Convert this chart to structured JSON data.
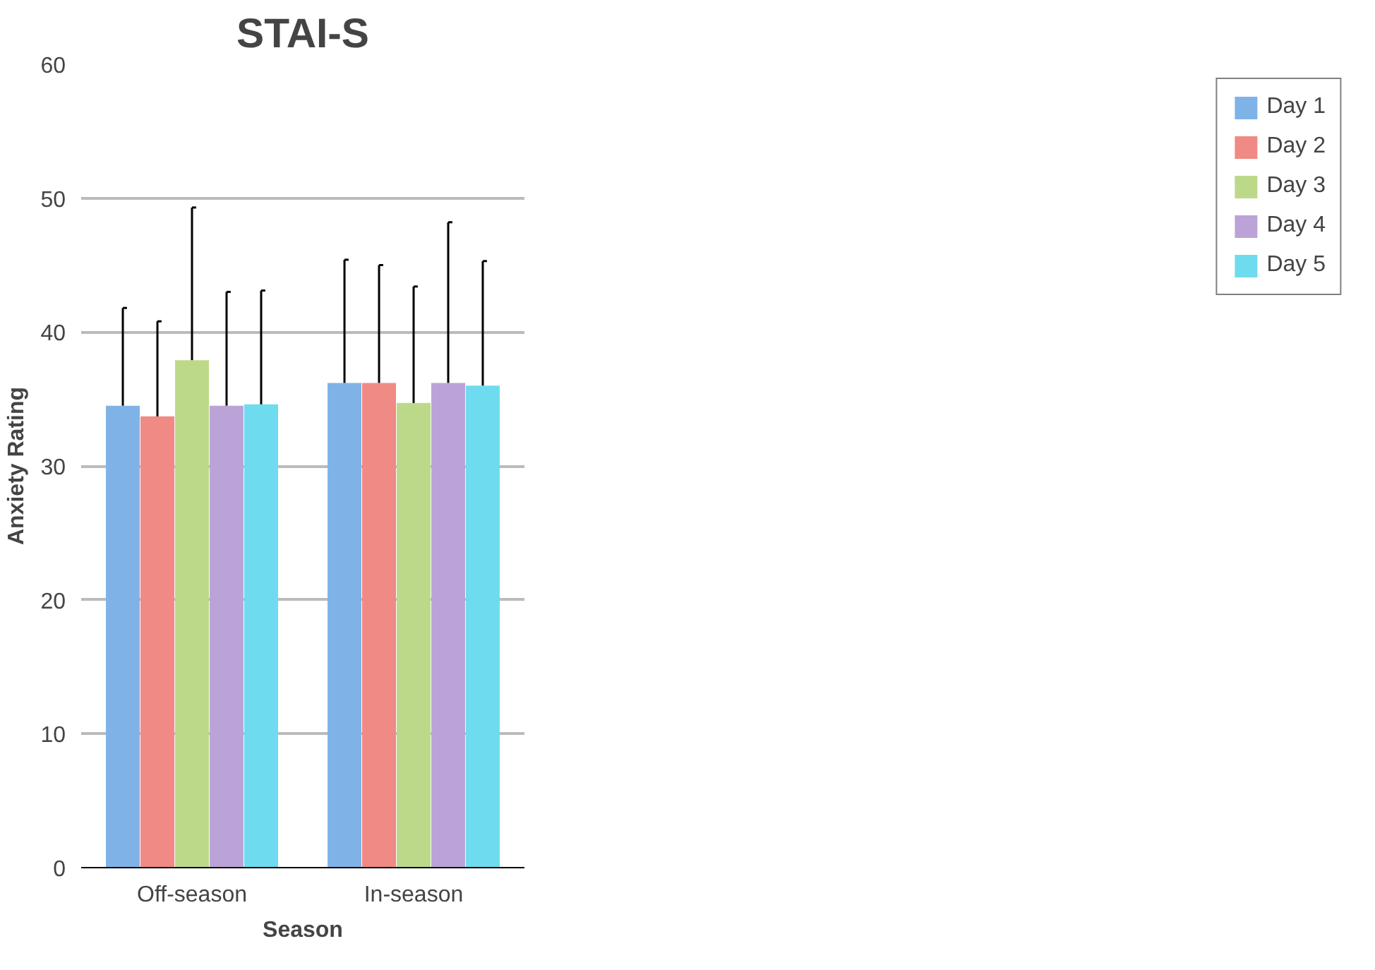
{
  "chart_data": {
    "type": "bar",
    "title": "STAI-S",
    "xlabel": "Season",
    "ylabel": "Anxiety Rating",
    "categories": [
      "Off-season",
      "In-season"
    ],
    "series": [
      {
        "name": "Day 1",
        "color": "#7fb3e8",
        "values": [
          34.5,
          36.2
        ],
        "errors": [
          [
            34.5,
            41.8
          ],
          [
            36.2,
            45.4
          ]
        ]
      },
      {
        "name": "Day 2",
        "color": "#f08a85",
        "values": [
          33.7,
          36.2
        ],
        "errors": [
          [
            33.7,
            40.8
          ],
          [
            36.2,
            45.0
          ]
        ]
      },
      {
        "name": "Day 3",
        "color": "#bcd98a",
        "values": [
          37.9,
          34.7
        ],
        "errors": [
          [
            37.9,
            49.3
          ],
          [
            34.7,
            43.4
          ]
        ]
      },
      {
        "name": "Day 4",
        "color": "#bba3d8",
        "values": [
          34.5,
          36.2
        ],
        "errors": [
          [
            34.5,
            43.0
          ],
          [
            36.2,
            48.2
          ]
        ]
      },
      {
        "name": "Day 5",
        "color": "#6fdbee",
        "values": [
          34.6,
          36.0
        ],
        "errors": [
          [
            34.6,
            43.1
          ],
          [
            36.0,
            45.3
          ]
        ]
      }
    ],
    "ylim": [
      0,
      60
    ],
    "yticks": [
      0,
      10,
      20,
      30,
      40,
      50,
      60
    ],
    "grid": "y",
    "legend": "right"
  }
}
